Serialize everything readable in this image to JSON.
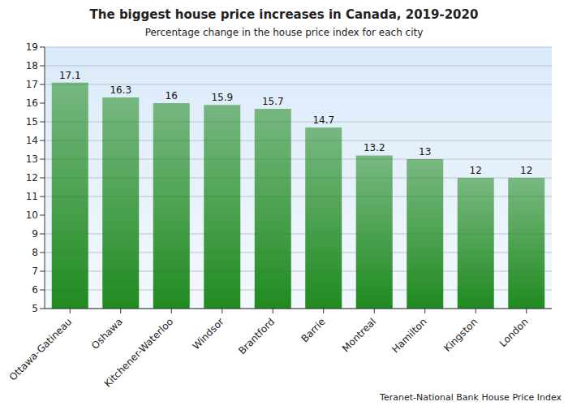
{
  "chart_data": {
    "type": "bar",
    "title": "The biggest house price increases in Canada, 2019-2020",
    "subtitle": "Percentage change in the house price index for each city",
    "source": "Teranet-National Bank House Price Index",
    "categories": [
      "Ottawa-Gatineau",
      "Oshawa",
      "Kitchener-Waterloo",
      "Windsor",
      "Brantford",
      "Barrie",
      "Montreal",
      "Hamilton",
      "Kingston",
      "London"
    ],
    "values": [
      17.1,
      16.3,
      16,
      15.9,
      15.7,
      14.7,
      13.2,
      13,
      12,
      12
    ],
    "color": "#1f8a1f",
    "ylim": [
      5,
      19
    ],
    "yticks": [
      5,
      6,
      7,
      8,
      9,
      10,
      11,
      12,
      13,
      14,
      15,
      16,
      17,
      18,
      19
    ],
    "grid": true,
    "data_labels": true
  }
}
